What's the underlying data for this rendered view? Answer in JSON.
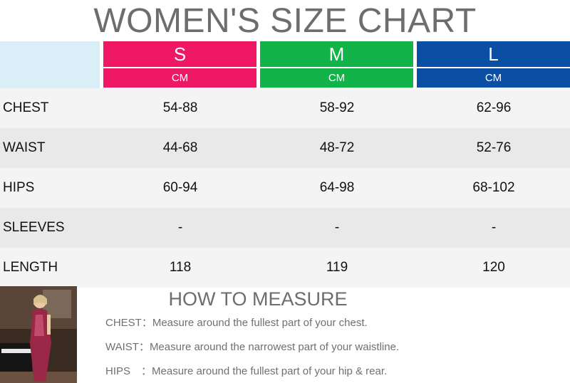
{
  "title": "WOMEN'S SIZE CHART",
  "colors": {
    "s": "#ee1865",
    "m": "#12b348",
    "l": "#0a4fa3",
    "corner": "#d9eef6",
    "row_light": "#f4f4f4",
    "row_dark": "#e9e9e9"
  },
  "sizes": [
    {
      "name": "S",
      "unit": "CM"
    },
    {
      "name": "M",
      "unit": "CM"
    },
    {
      "name": "L",
      "unit": "CM"
    }
  ],
  "rows": [
    {
      "label": "CHEST",
      "values": [
        "54-88",
        "58-92",
        "62-96"
      ]
    },
    {
      "label": "WAIST",
      "values": [
        "44-68",
        "48-72",
        "52-76"
      ]
    },
    {
      "label": "HIPS",
      "values": [
        "60-94",
        "64-98",
        "68-102"
      ]
    },
    {
      "label": "SLEEVES",
      "values": [
        "-",
        "-",
        "-"
      ]
    },
    {
      "label": "LENGTH",
      "values": [
        "118",
        "119",
        "120"
      ]
    }
  ],
  "how_to_measure": {
    "title": "HOW TO MEASURE",
    "lines": [
      "CHEST：Measure around the fullest part of your chest.",
      "WAIST：Measure around the narrowest part of your waistline.",
      "HIPS　：Measure around the fullest part of your hip & rear."
    ]
  }
}
